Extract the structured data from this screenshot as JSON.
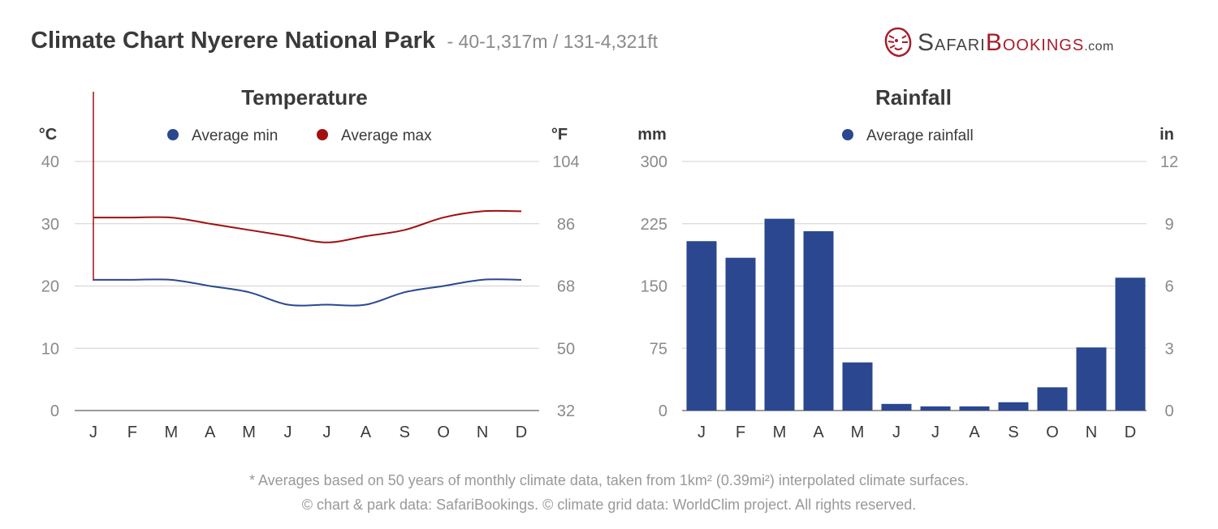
{
  "header": {
    "title": "Climate Chart Nyerere National Park",
    "subtitle": "- 40-1,317m / 131-4,321ft"
  },
  "brand": {
    "safari": "Safari",
    "bookings": "Bookings",
    "com": ".com"
  },
  "colors": {
    "min": "#2a4790",
    "max": "#a01010",
    "rain": "#2a4790",
    "grid": "#d0d0d0",
    "text": "#3a3a3a",
    "tick": "#8a8a8a"
  },
  "chart_data": [
    {
      "type": "line",
      "title": "Temperature",
      "left_unit": "°C",
      "right_unit": "°F",
      "categories": [
        "J",
        "F",
        "M",
        "A",
        "M",
        "J",
        "J",
        "A",
        "S",
        "O",
        "N",
        "D"
      ],
      "series": [
        {
          "name": "Average min",
          "values": [
            21,
            21,
            21,
            20,
            19,
            17,
            17,
            17,
            19,
            20,
            21,
            21
          ]
        },
        {
          "name": "Average max",
          "values": [
            31,
            31,
            31,
            30,
            29,
            28,
            27,
            28,
            29,
            31,
            32,
            32
          ]
        }
      ],
      "ylim": [
        0,
        40
      ],
      "yticks": [
        "0",
        "10",
        "20",
        "30",
        "40"
      ],
      "yticks_right": [
        "32",
        "50",
        "68",
        "86",
        "104"
      ],
      "grid": true,
      "legend": "top-center"
    },
    {
      "type": "bar",
      "title": "Rainfall",
      "left_unit": "mm",
      "right_unit": "in",
      "categories": [
        "J",
        "F",
        "M",
        "A",
        "M",
        "J",
        "J",
        "A",
        "S",
        "O",
        "N",
        "D"
      ],
      "series": [
        {
          "name": "Average rainfall",
          "values": [
            204,
            184,
            231,
            216,
            58,
            8,
            5,
            5,
            10,
            28,
            76,
            160
          ]
        }
      ],
      "ylim": [
        0,
        300
      ],
      "yticks": [
        "0",
        "75",
        "150",
        "225",
        "300"
      ],
      "yticks_right": [
        "0",
        "3",
        "6",
        "9",
        "12"
      ],
      "grid": true,
      "legend": "top-center"
    }
  ],
  "footer": {
    "line1": "* Averages based on 50 years of monthly climate data, taken from 1km² (0.39mi²) interpolated climate surfaces.",
    "line2": "© chart & park data: SafariBookings. © climate grid data: WorldClim project. All rights reserved."
  }
}
